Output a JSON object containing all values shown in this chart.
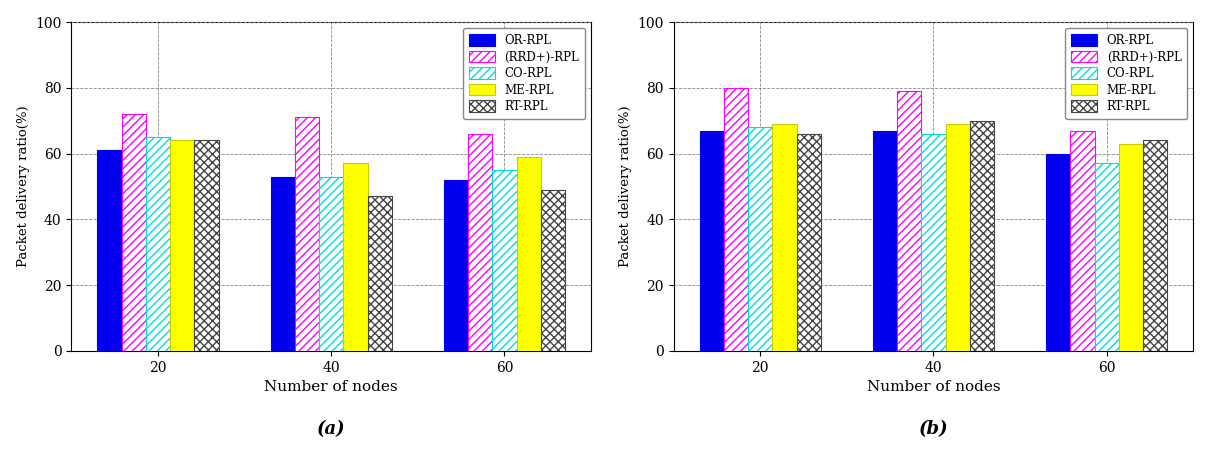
{
  "chart_a": {
    "title": "(a)",
    "categories": [
      20,
      40,
      60
    ],
    "series": {
      "OR-RPL": [
        61,
        53,
        52
      ],
      "(RRD+)-RPL": [
        72,
        71,
        66
      ],
      "CO-RPL": [
        65,
        53,
        55
      ],
      "ME-RPL": [
        64,
        57,
        59
      ],
      "RT-RPL": [
        64,
        47,
        49
      ]
    }
  },
  "chart_b": {
    "title": "(b)",
    "categories": [
      20,
      40,
      60
    ],
    "series": {
      "OR-RPL": [
        67,
        67,
        60
      ],
      "(RRD+)-RPL": [
        80,
        79,
        67
      ],
      "CO-RPL": [
        68,
        66,
        57
      ],
      "ME-RPL": [
        69,
        69,
        63
      ],
      "RT-RPL": [
        66,
        70,
        64
      ]
    }
  },
  "bar_styles": {
    "OR-RPL": {
      "facecolor": "#0000ee",
      "hatch": "",
      "edgecolor": "#0000ee"
    },
    "(RRD+)-RPL": {
      "facecolor": "#ffffff",
      "hatch": "////",
      "edgecolor": "#ff00ff"
    },
    "CO-RPL": {
      "facecolor": "#ffffff",
      "hatch": "////",
      "edgecolor": "#00dddd"
    },
    "ME-RPL": {
      "facecolor": "#ffff00",
      "hatch": "",
      "edgecolor": "#cccc00"
    },
    "RT-RPL": {
      "facecolor": "#ffffff",
      "hatch": "xxxx",
      "edgecolor": "#444444"
    }
  },
  "ylabel": "Packet delivery ratio(%)",
  "xlabel": "Number of nodes",
  "ylim": [
    0,
    100
  ],
  "yticks": [
    0,
    20,
    40,
    60,
    80,
    100
  ],
  "bar_width": 0.14,
  "legend_order": [
    "OR-RPL",
    "(RRD+)-RPL",
    "CO-RPL",
    "ME-RPL",
    "RT-RPL"
  ],
  "background_color": "#ffffff"
}
